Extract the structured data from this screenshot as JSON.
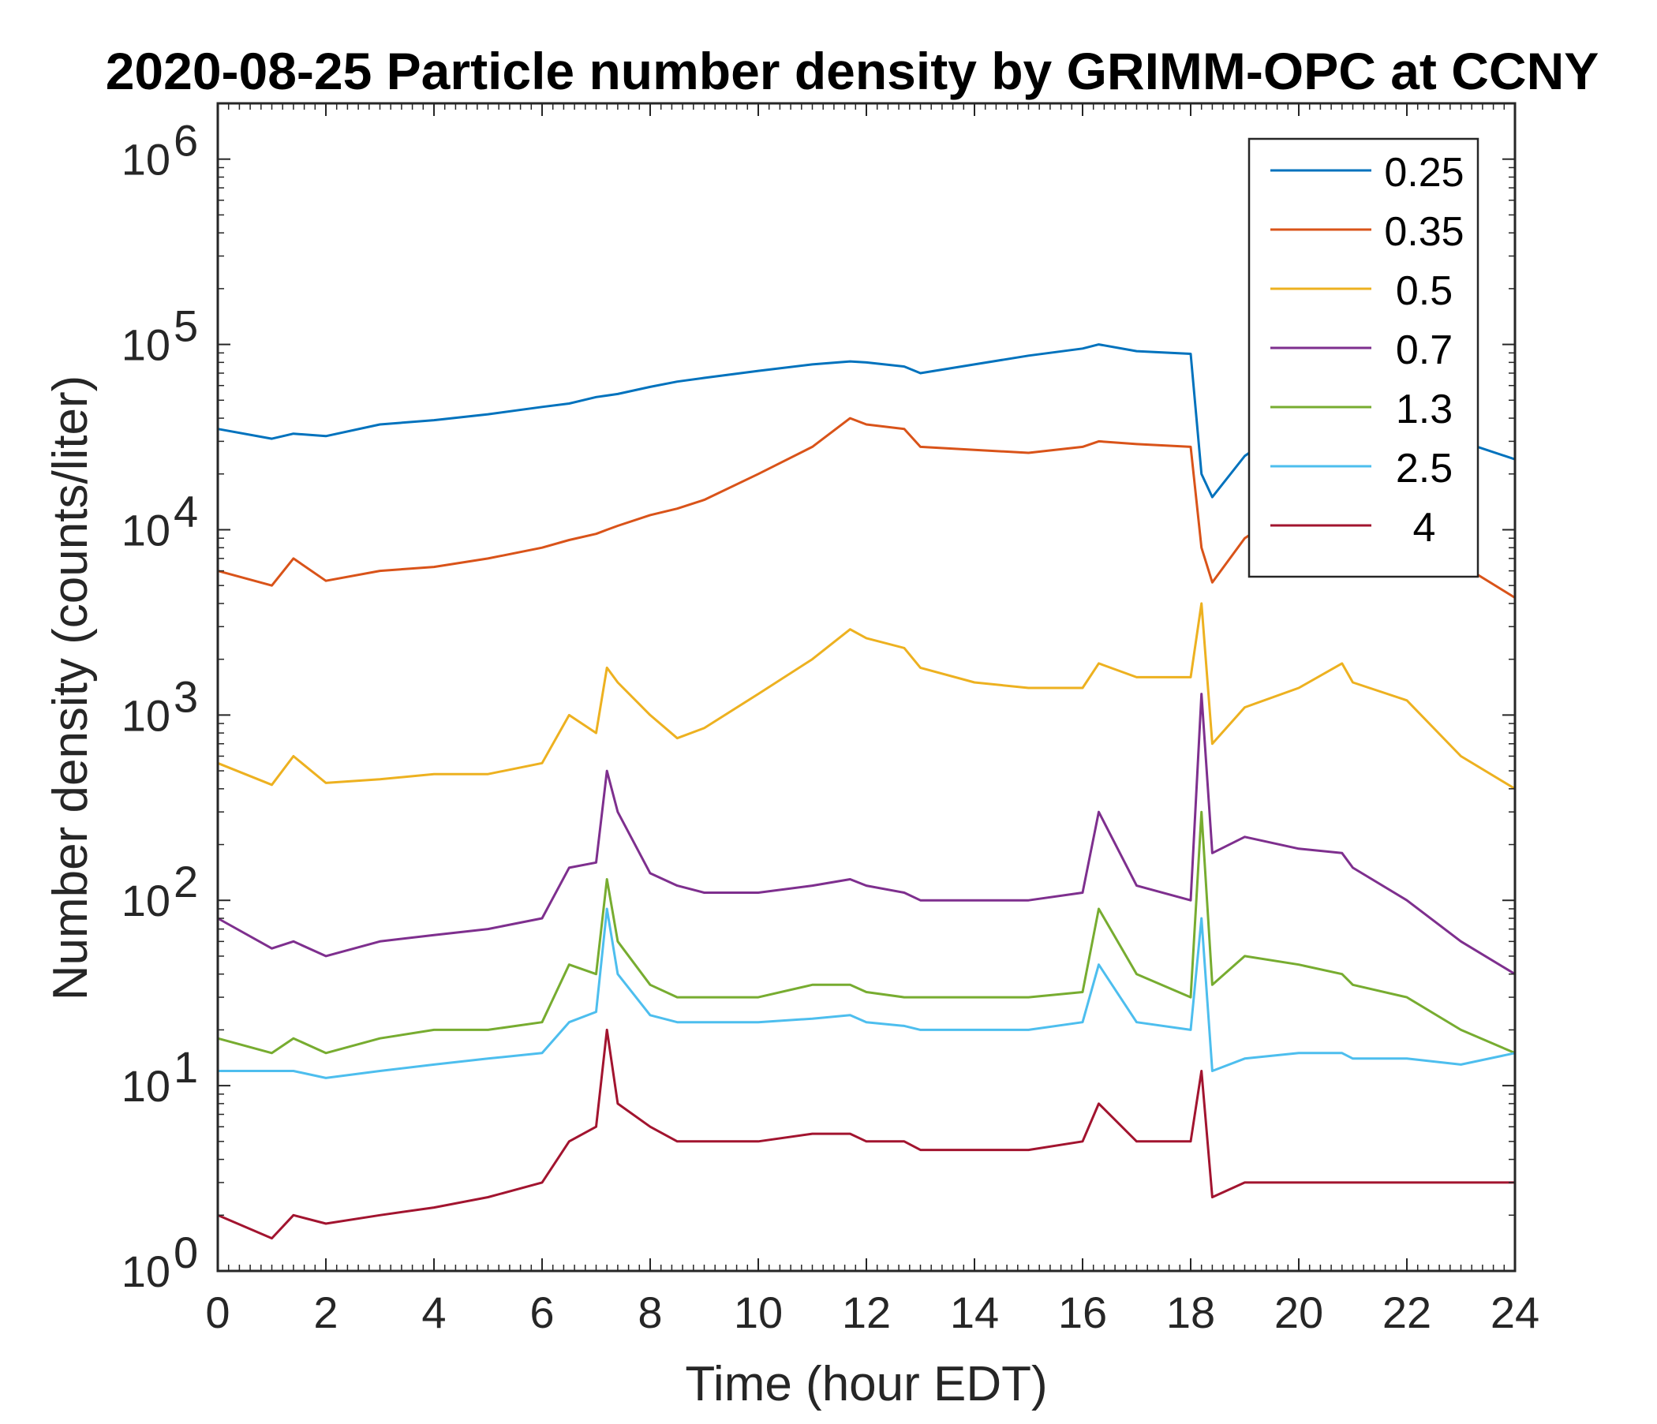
{
  "chart_data": {
    "type": "line",
    "title": "2020-08-25 Particle number density by GRIMM-OPC at CCNY",
    "xlabel": "Time (hour EDT)",
    "ylabel": "Number density (counts/liter)",
    "xlim": [
      0,
      24
    ],
    "ylim": [
      1,
      2000000
    ],
    "yscale": "log",
    "grid": false,
    "legend_position": "top-right",
    "x_ticks": [
      0,
      2,
      4,
      6,
      8,
      10,
      12,
      14,
      16,
      18,
      20,
      22,
      24
    ],
    "x_tick_labels": [
      "0",
      "2",
      "4",
      "6",
      "8",
      "10",
      "12",
      "14",
      "16",
      "18",
      "20",
      "22",
      "24"
    ],
    "y_ticks": [
      1,
      10,
      100,
      1000,
      10000,
      100000,
      1000000
    ],
    "y_tick_labels": [
      {
        "base": "10",
        "exp": "0"
      },
      {
        "base": "10",
        "exp": "1"
      },
      {
        "base": "10",
        "exp": "2"
      },
      {
        "base": "10",
        "exp": "3"
      },
      {
        "base": "10",
        "exp": "4"
      },
      {
        "base": "10",
        "exp": "5"
      },
      {
        "base": "10",
        "exp": "6"
      }
    ],
    "x": [
      0,
      1,
      1.4,
      2,
      3,
      4,
      5,
      6,
      6.5,
      7,
      7.2,
      7.4,
      8,
      8.5,
      9,
      10,
      11,
      11.7,
      12,
      12.7,
      13,
      14,
      15,
      16,
      16.3,
      17,
      18,
      18.2,
      18.4,
      19,
      20,
      20.8,
      21,
      22,
      23,
      24
    ],
    "series": [
      {
        "name": "0.25",
        "color": "#0072BD",
        "values": [
          35000,
          31000,
          33000,
          32000,
          37000,
          39000,
          42000,
          46000,
          48000,
          52000,
          53000,
          54000,
          59000,
          63000,
          66000,
          72000,
          78000,
          81000,
          80000,
          76000,
          70000,
          78000,
          87000,
          95000,
          100000,
          92000,
          89000,
          20000,
          15000,
          25000,
          40000,
          42000,
          40000,
          34000,
          30000,
          24000
        ]
      },
      {
        "name": "0.35",
        "color": "#D95319",
        "values": [
          6000,
          5000,
          7000,
          5300,
          6000,
          6300,
          7000,
          8000,
          8800,
          9500,
          10000,
          10500,
          12000,
          13000,
          14500,
          20000,
          28000,
          40000,
          37000,
          35000,
          28000,
          27000,
          26000,
          28000,
          30000,
          29000,
          28000,
          8000,
          5200,
          9000,
          14000,
          15000,
          14000,
          10000,
          6500,
          4300
        ]
      },
      {
        "name": "0.5",
        "color": "#EDB120",
        "values": [
          550,
          420,
          600,
          430,
          450,
          480,
          480,
          550,
          1000,
          800,
          1800,
          1500,
          1000,
          750,
          850,
          1300,
          2000,
          2900,
          2600,
          2300,
          1800,
          1500,
          1400,
          1400,
          1900,
          1600,
          1600,
          4000,
          700,
          1100,
          1400,
          1900,
          1500,
          1200,
          600,
          400
        ]
      },
      {
        "name": "0.7",
        "color": "#7E2F8E",
        "values": [
          80,
          55,
          60,
          50,
          60,
          65,
          70,
          80,
          150,
          160,
          500,
          300,
          140,
          120,
          110,
          110,
          120,
          130,
          120,
          110,
          100,
          100,
          100,
          110,
          300,
          120,
          100,
          1300,
          180,
          220,
          190,
          180,
          150,
          100,
          60,
          40
        ]
      },
      {
        "name": "1.3",
        "color": "#77AC30",
        "values": [
          18,
          15,
          18,
          15,
          18,
          20,
          20,
          22,
          45,
          40,
          130,
          60,
          35,
          30,
          30,
          30,
          35,
          35,
          32,
          30,
          30,
          30,
          30,
          32,
          90,
          40,
          30,
          300,
          35,
          50,
          45,
          40,
          35,
          30,
          20,
          15
        ]
      },
      {
        "name": "2.5",
        "color": "#4DBEEE",
        "values": [
          12,
          12,
          12,
          11,
          12,
          13,
          14,
          15,
          22,
          25,
          90,
          40,
          24,
          22,
          22,
          22,
          23,
          24,
          22,
          21,
          20,
          20,
          20,
          22,
          45,
          22,
          20,
          80,
          12,
          14,
          15,
          15,
          14,
          14,
          13,
          15
        ]
      },
      {
        "name": "4",
        "color": "#A2142F",
        "values": [
          2,
          1.5,
          2,
          1.8,
          2,
          2.2,
          2.5,
          3,
          5,
          6,
          20,
          8,
          6,
          5,
          5,
          5,
          5.5,
          5.5,
          5,
          5,
          4.5,
          4.5,
          4.5,
          5,
          8,
          5,
          5,
          12,
          2.5,
          3,
          3,
          3,
          3,
          3,
          3,
          3
        ]
      }
    ]
  }
}
